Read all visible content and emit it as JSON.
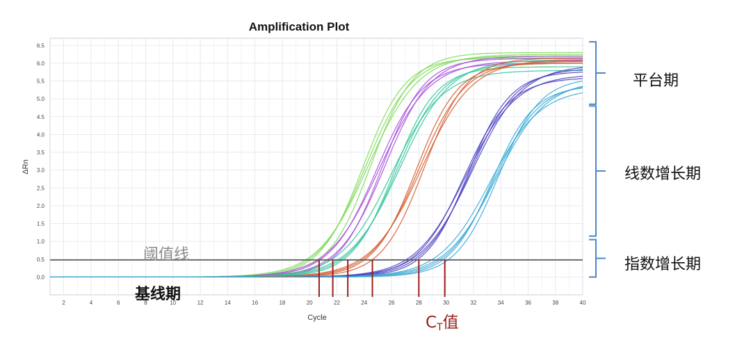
{
  "chart_data": {
    "type": "line",
    "title": "Amplification Plot",
    "xlabel": "Cycle",
    "ylabel": "ΔRn",
    "xlim": [
      1,
      40
    ],
    "ylim": [
      -0.5,
      6.7
    ],
    "xticks": [
      2,
      4,
      6,
      8,
      10,
      12,
      14,
      16,
      18,
      20,
      22,
      24,
      26,
      28,
      30,
      32,
      34,
      36,
      38,
      40
    ],
    "yticks": [
      0.0,
      0.5,
      1.0,
      1.5,
      2.0,
      2.5,
      3.0,
      3.5,
      4.0,
      4.5,
      5.0,
      5.5,
      6.0,
      6.5
    ],
    "grid": true,
    "threshold": 0.48,
    "ct_values": [
      20.7,
      21.7,
      22.8,
      24.6,
      28.0,
      29.9
    ],
    "groups": [
      {
        "color": "#7ed957",
        "midpoint": 24.2,
        "plateau": [
          6.15,
          6.3
        ],
        "count": 4
      },
      {
        "color": "#a64ed8",
        "midpoint": 25.2,
        "plateau": [
          6.0,
          6.2
        ],
        "count": 4
      },
      {
        "color": "#2fc49a",
        "midpoint": 26.3,
        "plateau": [
          5.8,
          6.1
        ],
        "count": 4
      },
      {
        "color": "#d6592b",
        "midpoint": 28.1,
        "plateau": [
          6.0,
          6.15
        ],
        "count": 4
      },
      {
        "color": "#4a3fc1",
        "midpoint": 31.6,
        "plateau": [
          5.6,
          5.95
        ],
        "count": 5
      },
      {
        "color": "#38a9d4",
        "midpoint": 33.5,
        "plateau": [
          5.3,
          5.6
        ],
        "count": 5
      }
    ]
  },
  "annotations": {
    "threshold_label": "阈值线",
    "baseline_label": "基线期",
    "ct_label_main": "C",
    "ct_label_sub": "T",
    "ct_label_suffix": "值",
    "plateau_label": "平台期",
    "linear_label": "线数增长期",
    "exponential_label": "指数增长期"
  },
  "colors": {
    "threshold_line": "#555555",
    "ct_marker": "#9b1c1c",
    "bracket": "#4a86c8",
    "grid": "#dfe3e8"
  }
}
